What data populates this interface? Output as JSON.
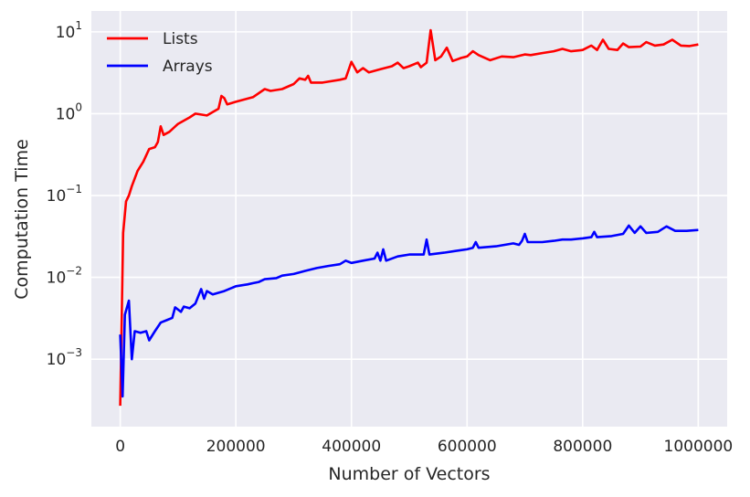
{
  "chart_data": {
    "type": "line",
    "xlabel": "Number of Vectors",
    "ylabel": "Computation Time",
    "xlim": [
      -50000,
      1050000
    ],
    "ylim": [
      0.00015,
      18
    ],
    "yscale": "log",
    "grid": true,
    "legend_position": "top-left",
    "x_ticks": [
      {
        "value": 0,
        "label": "0"
      },
      {
        "value": 200000,
        "label": "200000"
      },
      {
        "value": 400000,
        "label": "400000"
      },
      {
        "value": 600000,
        "label": "600000"
      },
      {
        "value": 800000,
        "label": "800000"
      },
      {
        "value": 1000000,
        "label": "1000000"
      }
    ],
    "y_ticks": [
      {
        "value": 0.001,
        "base": "10",
        "exp": "−3"
      },
      {
        "value": 0.01,
        "base": "10",
        "exp": "−2"
      },
      {
        "value": 0.1,
        "base": "10",
        "exp": "−1"
      },
      {
        "value": 1,
        "base": "10",
        "exp": "0"
      },
      {
        "value": 10,
        "base": "10",
        "exp": "1"
      }
    ],
    "series": [
      {
        "name": "Lists",
        "color": "#ff0000",
        "points": [
          [
            0,
            0.00027
          ],
          [
            5000,
            0.035
          ],
          [
            10000,
            0.085
          ],
          [
            15000,
            0.1
          ],
          [
            20000,
            0.13
          ],
          [
            30000,
            0.2
          ],
          [
            40000,
            0.26
          ],
          [
            50000,
            0.37
          ],
          [
            60000,
            0.39
          ],
          [
            65000,
            0.45
          ],
          [
            70000,
            0.7
          ],
          [
            75000,
            0.55
          ],
          [
            85000,
            0.6
          ],
          [
            100000,
            0.75
          ],
          [
            120000,
            0.9
          ],
          [
            130000,
            1.0
          ],
          [
            150000,
            0.95
          ],
          [
            170000,
            1.15
          ],
          [
            175000,
            1.65
          ],
          [
            180000,
            1.55
          ],
          [
            185000,
            1.3
          ],
          [
            200000,
            1.4
          ],
          [
            230000,
            1.6
          ],
          [
            250000,
            2.0
          ],
          [
            260000,
            1.9
          ],
          [
            280000,
            2.0
          ],
          [
            300000,
            2.3
          ],
          [
            310000,
            2.7
          ],
          [
            320000,
            2.6
          ],
          [
            325000,
            2.9
          ],
          [
            330000,
            2.4
          ],
          [
            350000,
            2.4
          ],
          [
            380000,
            2.6
          ],
          [
            390000,
            2.7
          ],
          [
            400000,
            4.3
          ],
          [
            410000,
            3.2
          ],
          [
            420000,
            3.6
          ],
          [
            430000,
            3.2
          ],
          [
            450000,
            3.5
          ],
          [
            470000,
            3.8
          ],
          [
            480000,
            4.2
          ],
          [
            490000,
            3.6
          ],
          [
            500000,
            3.8
          ],
          [
            515000,
            4.2
          ],
          [
            520000,
            3.7
          ],
          [
            530000,
            4.2
          ],
          [
            537000,
            10.5
          ],
          [
            545000,
            4.5
          ],
          [
            555000,
            5.0
          ],
          [
            565000,
            6.4
          ],
          [
            575000,
            4.4
          ],
          [
            590000,
            4.8
          ],
          [
            600000,
            5.0
          ],
          [
            610000,
            5.8
          ],
          [
            620000,
            5.2
          ],
          [
            640000,
            4.5
          ],
          [
            660000,
            5.0
          ],
          [
            680000,
            4.9
          ],
          [
            700000,
            5.3
          ],
          [
            710000,
            5.2
          ],
          [
            730000,
            5.5
          ],
          [
            750000,
            5.8
          ],
          [
            765000,
            6.2
          ],
          [
            780000,
            5.8
          ],
          [
            800000,
            6.0
          ],
          [
            815000,
            6.8
          ],
          [
            825000,
            6.0
          ],
          [
            835000,
            8.0
          ],
          [
            845000,
            6.2
          ],
          [
            860000,
            6.0
          ],
          [
            870000,
            7.2
          ],
          [
            880000,
            6.5
          ],
          [
            900000,
            6.6
          ],
          [
            910000,
            7.5
          ],
          [
            925000,
            6.8
          ],
          [
            940000,
            7.0
          ],
          [
            955000,
            8.0
          ],
          [
            970000,
            6.8
          ],
          [
            985000,
            6.7
          ],
          [
            1000000,
            7.0
          ]
        ]
      },
      {
        "name": "Arrays",
        "color": "#0000ff",
        "points": [
          [
            0,
            0.002
          ],
          [
            4000,
            0.00035
          ],
          [
            8000,
            0.0035
          ],
          [
            15000,
            0.0052
          ],
          [
            20000,
            0.001
          ],
          [
            25000,
            0.0022
          ],
          [
            35000,
            0.0021
          ],
          [
            45000,
            0.0022
          ],
          [
            50000,
            0.0017
          ],
          [
            60000,
            0.0022
          ],
          [
            70000,
            0.0028
          ],
          [
            80000,
            0.003
          ],
          [
            90000,
            0.0032
          ],
          [
            95000,
            0.0043
          ],
          [
            105000,
            0.0038
          ],
          [
            110000,
            0.0044
          ],
          [
            120000,
            0.0042
          ],
          [
            130000,
            0.0048
          ],
          [
            140000,
            0.0072
          ],
          [
            145000,
            0.0055
          ],
          [
            150000,
            0.0068
          ],
          [
            160000,
            0.0062
          ],
          [
            180000,
            0.0068
          ],
          [
            200000,
            0.0078
          ],
          [
            220000,
            0.0082
          ],
          [
            230000,
            0.0085
          ],
          [
            240000,
            0.0088
          ],
          [
            250000,
            0.0095
          ],
          [
            270000,
            0.0098
          ],
          [
            280000,
            0.0105
          ],
          [
            300000,
            0.011
          ],
          [
            320000,
            0.012
          ],
          [
            340000,
            0.013
          ],
          [
            360000,
            0.0138
          ],
          [
            380000,
            0.0145
          ],
          [
            390000,
            0.016
          ],
          [
            400000,
            0.015
          ],
          [
            420000,
            0.016
          ],
          [
            440000,
            0.017
          ],
          [
            445000,
            0.02
          ],
          [
            450000,
            0.016
          ],
          [
            455000,
            0.022
          ],
          [
            460000,
            0.016
          ],
          [
            480000,
            0.018
          ],
          [
            500000,
            0.019
          ],
          [
            525000,
            0.019
          ],
          [
            530000,
            0.029
          ],
          [
            535000,
            0.019
          ],
          [
            560000,
            0.02
          ],
          [
            580000,
            0.021
          ],
          [
            600000,
            0.022
          ],
          [
            610000,
            0.023
          ],
          [
            615000,
            0.027
          ],
          [
            620000,
            0.023
          ],
          [
            650000,
            0.024
          ],
          [
            680000,
            0.026
          ],
          [
            690000,
            0.025
          ],
          [
            695000,
            0.028
          ],
          [
            700000,
            0.034
          ],
          [
            705000,
            0.027
          ],
          [
            730000,
            0.027
          ],
          [
            750000,
            0.028
          ],
          [
            765000,
            0.029
          ],
          [
            780000,
            0.029
          ],
          [
            800000,
            0.03
          ],
          [
            815000,
            0.031
          ],
          [
            820000,
            0.036
          ],
          [
            825000,
            0.031
          ],
          [
            850000,
            0.032
          ],
          [
            870000,
            0.034
          ],
          [
            880000,
            0.043
          ],
          [
            890000,
            0.035
          ],
          [
            900000,
            0.042
          ],
          [
            910000,
            0.035
          ],
          [
            930000,
            0.036
          ],
          [
            945000,
            0.042
          ],
          [
            960000,
            0.037
          ],
          [
            980000,
            0.037
          ],
          [
            1000000,
            0.038
          ]
        ]
      }
    ]
  }
}
